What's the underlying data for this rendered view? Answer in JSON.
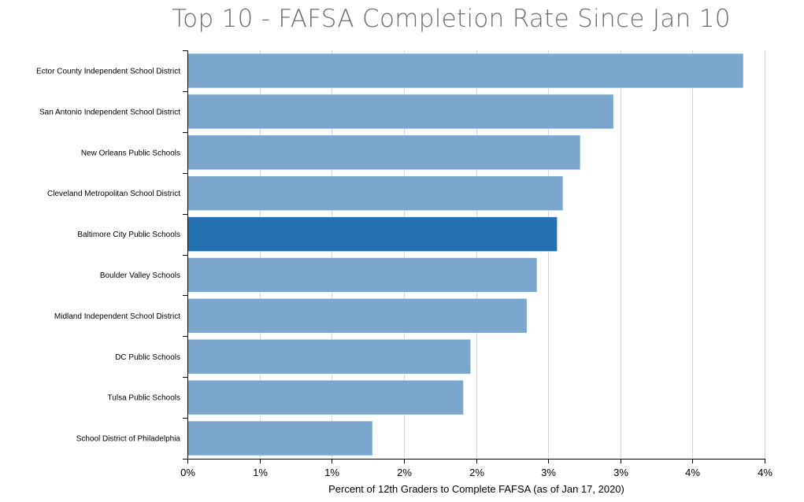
{
  "chart_data": {
    "type": "bar",
    "orientation": "horizontal",
    "title": "Top 10 - FAFSA Completion Rate Since Jan 10",
    "xlabel": "Percent of 12th Graders to Complete FAFSA (as of Jan 17, 2020)",
    "ylabel": "",
    "xlim": [
      0,
      0.04
    ],
    "grid": true,
    "categories": [
      "Ector County Independent School District",
      "San Antonio Independent School District",
      "New Orleans Public Schools",
      "Cleveland Metropolitan School District",
      "Baltimore City Public Schools",
      "Boulder Valley Schools",
      "Midland Independent School District",
      "DC Public Schools",
      "Tulsa Public Schools",
      "School District of Philadelphia"
    ],
    "values": [
      0.0385,
      0.0295,
      0.0272,
      0.026,
      0.0256,
      0.0242,
      0.0235,
      0.0196,
      0.0191,
      0.0128
    ],
    "highlight_index": 4,
    "x_ticks": [
      0,
      0.005,
      0.01,
      0.015,
      0.02,
      0.025,
      0.03,
      0.035,
      0.04
    ],
    "x_tick_labels": [
      "0%",
      "1%",
      "1%",
      "2%",
      "2%",
      "3%",
      "3%",
      "4%",
      "4%"
    ],
    "colors": {
      "bar": "#7ba7ce",
      "highlight": "#2470b1",
      "grid": "#d7d7d7",
      "axis": "#000000"
    }
  }
}
